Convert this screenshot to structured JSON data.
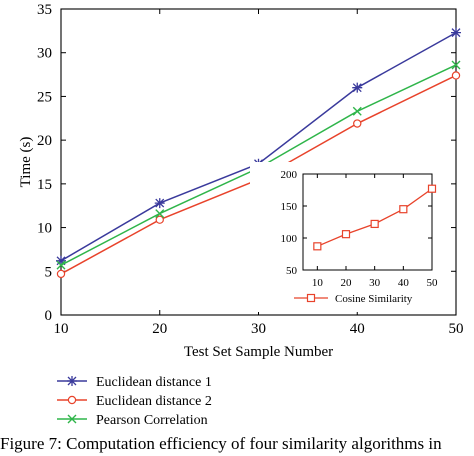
{
  "chart_data": [
    {
      "type": "line",
      "title": "",
      "xlabel": "Test Set Sample Number",
      "ylabel": "Time (s)",
      "x": [
        10,
        20,
        30,
        40,
        50
      ],
      "xlim": [
        10,
        50
      ],
      "ylim": [
        0,
        35
      ],
      "xticks": [
        "10",
        "20",
        "30",
        "40",
        "50"
      ],
      "yticks": [
        "0",
        "5",
        "10",
        "15",
        "20",
        "25",
        "30",
        "35"
      ],
      "grid": false,
      "legend": "below plot, left",
      "series": [
        {
          "name": "Euclidean distance 1",
          "values": [
            6.2,
            12.8,
            17.3,
            26.0,
            32.3
          ],
          "color": "#3a3a9c",
          "marker": "asterisk"
        },
        {
          "name": "Euclidean distance 2",
          "values": [
            4.7,
            10.9,
            15.5,
            21.9,
            27.4
          ],
          "color": "#e8432b",
          "marker": "circle"
        },
        {
          "name": "Pearson Correlation",
          "values": [
            5.7,
            11.6,
            16.8,
            23.3,
            28.6
          ],
          "color": "#2fb54a",
          "marker": "x"
        }
      ]
    },
    {
      "type": "line",
      "title": "",
      "inset": true,
      "x": [
        10,
        20,
        30,
        40,
        50
      ],
      "xlim": [
        5,
        50
      ],
      "ylim": [
        50,
        200
      ],
      "xticks": [
        "10",
        "20",
        "30",
        "40",
        "50"
      ],
      "yticks": [
        "50",
        "100",
        "150",
        "200"
      ],
      "legend": "below plot",
      "series": [
        {
          "name": "Cosine Similarity",
          "values": [
            87,
            106,
            122,
            145,
            177
          ],
          "color": "#e8432b",
          "marker": "square"
        }
      ]
    }
  ],
  "caption": "Figure 7: Computation efficiency of four similarity algorithms in"
}
